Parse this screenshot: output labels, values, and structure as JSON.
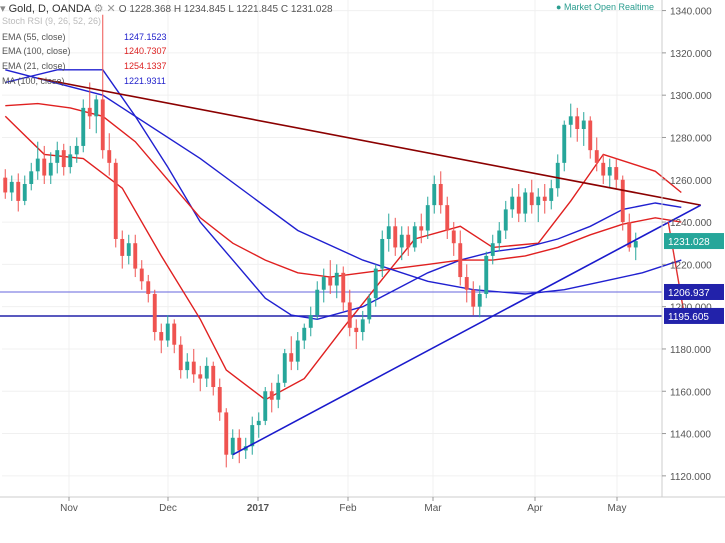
{
  "header": {
    "symbol": "Gold, D, OANDA",
    "open_label": "O",
    "open": "1228.368",
    "high_label": "H",
    "high": "1234.845",
    "low_label": "L",
    "low": "1221.845",
    "close_label": "C",
    "close": "1231.028",
    "market_status": "Market Open",
    "realtime": "Realtime"
  },
  "legend": [
    {
      "label": "Stoch RSI (9, 26, 52, 26)",
      "value": "",
      "color": "#999999"
    },
    {
      "label": "EMA (55, close)",
      "value": "1247.1523",
      "color": "#2222cc"
    },
    {
      "label": "EMA (100, close)",
      "value": "1240.7307",
      "color": "#dd2222"
    },
    {
      "label": "EMA (21, close)",
      "value": "1254.1337",
      "color": "#dd2222"
    },
    {
      "label": "MA (100, close)",
      "value": "1221.9311",
      "color": "#2222cc"
    }
  ],
  "chart_data": {
    "type": "candlestick",
    "x_tick_labels": [
      "Nov",
      "Dec",
      "2017",
      "Feb",
      "Mar",
      "Apr",
      "May"
    ],
    "y_ticks": [
      1120,
      1140,
      1160,
      1180,
      1200,
      1220,
      1240,
      1260,
      1280,
      1300,
      1320,
      1340
    ],
    "y_tick_labels": [
      "1120.000",
      "1140.000",
      "1160.000",
      "1180.000",
      "1200.000",
      "1220.000",
      "1240.000",
      "1260.000",
      "1280.000",
      "1300.000",
      "1320.000",
      "1340.000"
    ],
    "ylim": [
      1110,
      1345
    ],
    "price_tags": [
      {
        "label": "1231.028",
        "value": 1231.028,
        "color": "#26a69a"
      },
      {
        "label": "1206.937",
        "value": 1206.937,
        "color": "#2222aa"
      },
      {
        "label": "1195.605",
        "value": 1195.605,
        "color": "#2222aa"
      }
    ],
    "horizontal_levels": [
      {
        "value": 1206.937,
        "color": "#6666dd"
      },
      {
        "value": 1195.605,
        "color": "#2222aa"
      }
    ],
    "candles": [
      {
        "o": 1261,
        "h": 1265,
        "l": 1251,
        "c": 1254
      },
      {
        "o": 1254,
        "h": 1262,
        "l": 1250,
        "c": 1259
      },
      {
        "o": 1259,
        "h": 1263,
        "l": 1245,
        "c": 1250
      },
      {
        "o": 1250,
        "h": 1262,
        "l": 1248,
        "c": 1258
      },
      {
        "o": 1258,
        "h": 1268,
        "l": 1255,
        "c": 1264
      },
      {
        "o": 1264,
        "h": 1278,
        "l": 1260,
        "c": 1270
      },
      {
        "o": 1270,
        "h": 1276,
        "l": 1258,
        "c": 1262
      },
      {
        "o": 1262,
        "h": 1273,
        "l": 1258,
        "c": 1268
      },
      {
        "o": 1268,
        "h": 1278,
        "l": 1263,
        "c": 1274
      },
      {
        "o": 1274,
        "h": 1277,
        "l": 1262,
        "c": 1266
      },
      {
        "o": 1266,
        "h": 1276,
        "l": 1263,
        "c": 1272
      },
      {
        "o": 1272,
        "h": 1280,
        "l": 1268,
        "c": 1276
      },
      {
        "o": 1276,
        "h": 1298,
        "l": 1273,
        "c": 1294
      },
      {
        "o": 1294,
        "h": 1306,
        "l": 1284,
        "c": 1290
      },
      {
        "o": 1290,
        "h": 1300,
        "l": 1282,
        "c": 1298
      },
      {
        "o": 1298,
        "h": 1338,
        "l": 1270,
        "c": 1274
      },
      {
        "o": 1274,
        "h": 1282,
        "l": 1262,
        "c": 1268
      },
      {
        "o": 1268,
        "h": 1270,
        "l": 1228,
        "c": 1232
      },
      {
        "o": 1232,
        "h": 1236,
        "l": 1218,
        "c": 1224
      },
      {
        "o": 1224,
        "h": 1234,
        "l": 1220,
        "c": 1230
      },
      {
        "o": 1230,
        "h": 1234,
        "l": 1214,
        "c": 1218
      },
      {
        "o": 1218,
        "h": 1222,
        "l": 1208,
        "c": 1212
      },
      {
        "o": 1212,
        "h": 1215,
        "l": 1202,
        "c": 1206
      },
      {
        "o": 1206,
        "h": 1208,
        "l": 1184,
        "c": 1188
      },
      {
        "o": 1188,
        "h": 1192,
        "l": 1178,
        "c": 1184
      },
      {
        "o": 1184,
        "h": 1196,
        "l": 1181,
        "c": 1192
      },
      {
        "o": 1192,
        "h": 1194,
        "l": 1178,
        "c": 1182
      },
      {
        "o": 1182,
        "h": 1186,
        "l": 1166,
        "c": 1170
      },
      {
        "o": 1170,
        "h": 1178,
        "l": 1166,
        "c": 1174
      },
      {
        "o": 1174,
        "h": 1180,
        "l": 1164,
        "c": 1168
      },
      {
        "o": 1168,
        "h": 1172,
        "l": 1160,
        "c": 1166
      },
      {
        "o": 1166,
        "h": 1176,
        "l": 1162,
        "c": 1172
      },
      {
        "o": 1172,
        "h": 1174,
        "l": 1158,
        "c": 1162
      },
      {
        "o": 1162,
        "h": 1166,
        "l": 1146,
        "c": 1150
      },
      {
        "o": 1150,
        "h": 1152,
        "l": 1124,
        "c": 1130
      },
      {
        "o": 1130,
        "h": 1142,
        "l": 1128,
        "c": 1138
      },
      {
        "o": 1138,
        "h": 1142,
        "l": 1126,
        "c": 1132
      },
      {
        "o": 1132,
        "h": 1138,
        "l": 1128,
        "c": 1134
      },
      {
        "o": 1134,
        "h": 1148,
        "l": 1130,
        "c": 1144
      },
      {
        "o": 1144,
        "h": 1150,
        "l": 1138,
        "c": 1146
      },
      {
        "o": 1146,
        "h": 1162,
        "l": 1144,
        "c": 1160
      },
      {
        "o": 1160,
        "h": 1164,
        "l": 1150,
        "c": 1156
      },
      {
        "o": 1156,
        "h": 1168,
        "l": 1152,
        "c": 1164
      },
      {
        "o": 1164,
        "h": 1180,
        "l": 1162,
        "c": 1178
      },
      {
        "o": 1178,
        "h": 1186,
        "l": 1170,
        "c": 1174
      },
      {
        "o": 1174,
        "h": 1188,
        "l": 1170,
        "c": 1184
      },
      {
        "o": 1184,
        "h": 1192,
        "l": 1180,
        "c": 1190
      },
      {
        "o": 1190,
        "h": 1200,
        "l": 1186,
        "c": 1196
      },
      {
        "o": 1196,
        "h": 1212,
        "l": 1194,
        "c": 1208
      },
      {
        "o": 1208,
        "h": 1218,
        "l": 1202,
        "c": 1214
      },
      {
        "o": 1214,
        "h": 1222,
        "l": 1206,
        "c": 1210
      },
      {
        "o": 1210,
        "h": 1220,
        "l": 1204,
        "c": 1216
      },
      {
        "o": 1216,
        "h": 1219,
        "l": 1198,
        "c": 1202
      },
      {
        "o": 1202,
        "h": 1208,
        "l": 1186,
        "c": 1190
      },
      {
        "o": 1190,
        "h": 1194,
        "l": 1180,
        "c": 1188
      },
      {
        "o": 1188,
        "h": 1198,
        "l": 1184,
        "c": 1194
      },
      {
        "o": 1194,
        "h": 1206,
        "l": 1192,
        "c": 1204
      },
      {
        "o": 1204,
        "h": 1220,
        "l": 1200,
        "c": 1218
      },
      {
        "o": 1218,
        "h": 1236,
        "l": 1214,
        "c": 1232
      },
      {
        "o": 1232,
        "h": 1244,
        "l": 1226,
        "c": 1238
      },
      {
        "o": 1238,
        "h": 1242,
        "l": 1224,
        "c": 1228
      },
      {
        "o": 1228,
        "h": 1238,
        "l": 1222,
        "c": 1234
      },
      {
        "o": 1234,
        "h": 1238,
        "l": 1224,
        "c": 1228
      },
      {
        "o": 1228,
        "h": 1240,
        "l": 1226,
        "c": 1238
      },
      {
        "o": 1238,
        "h": 1244,
        "l": 1230,
        "c": 1236
      },
      {
        "o": 1236,
        "h": 1252,
        "l": 1232,
        "c": 1248
      },
      {
        "o": 1248,
        "h": 1262,
        "l": 1244,
        "c": 1258
      },
      {
        "o": 1258,
        "h": 1264,
        "l": 1244,
        "c": 1248
      },
      {
        "o": 1248,
        "h": 1252,
        "l": 1232,
        "c": 1236
      },
      {
        "o": 1236,
        "h": 1240,
        "l": 1224,
        "c": 1230
      },
      {
        "o": 1230,
        "h": 1236,
        "l": 1210,
        "c": 1214
      },
      {
        "o": 1214,
        "h": 1220,
        "l": 1202,
        "c": 1208
      },
      {
        "o": 1208,
        "h": 1212,
        "l": 1196,
        "c": 1200
      },
      {
        "o": 1200,
        "h": 1210,
        "l": 1195,
        "c": 1206
      },
      {
        "o": 1206,
        "h": 1226,
        "l": 1204,
        "c": 1224
      },
      {
        "o": 1224,
        "h": 1234,
        "l": 1220,
        "c": 1230
      },
      {
        "o": 1230,
        "h": 1240,
        "l": 1226,
        "c": 1236
      },
      {
        "o": 1236,
        "h": 1250,
        "l": 1232,
        "c": 1246
      },
      {
        "o": 1246,
        "h": 1256,
        "l": 1242,
        "c": 1252
      },
      {
        "o": 1252,
        "h": 1258,
        "l": 1240,
        "c": 1244
      },
      {
        "o": 1244,
        "h": 1256,
        "l": 1240,
        "c": 1254
      },
      {
        "o": 1254,
        "h": 1260,
        "l": 1244,
        "c": 1248
      },
      {
        "o": 1248,
        "h": 1256,
        "l": 1240,
        "c": 1252
      },
      {
        "o": 1252,
        "h": 1258,
        "l": 1244,
        "c": 1250
      },
      {
        "o": 1250,
        "h": 1260,
        "l": 1246,
        "c": 1256
      },
      {
        "o": 1256,
        "h": 1272,
        "l": 1252,
        "c": 1268
      },
      {
        "o": 1268,
        "h": 1288,
        "l": 1264,
        "c": 1286
      },
      {
        "o": 1286,
        "h": 1296,
        "l": 1280,
        "c": 1290
      },
      {
        "o": 1290,
        "h": 1294,
        "l": 1278,
        "c": 1284
      },
      {
        "o": 1284,
        "h": 1292,
        "l": 1276,
        "c": 1288
      },
      {
        "o": 1288,
        "h": 1290,
        "l": 1270,
        "c": 1274
      },
      {
        "o": 1274,
        "h": 1280,
        "l": 1264,
        "c": 1268
      },
      {
        "o": 1268,
        "h": 1272,
        "l": 1258,
        "c": 1262
      },
      {
        "o": 1262,
        "h": 1270,
        "l": 1256,
        "c": 1266
      },
      {
        "o": 1266,
        "h": 1270,
        "l": 1256,
        "c": 1260
      },
      {
        "o": 1260,
        "h": 1262,
        "l": 1236,
        "c": 1240
      },
      {
        "o": 1240,
        "h": 1244,
        "l": 1226,
        "c": 1228
      },
      {
        "o": 1228,
        "h": 1235,
        "l": 1222,
        "c": 1231
      }
    ],
    "series": [
      {
        "name": "EMA (21, close)",
        "color": "#e02020",
        "x": [
          0,
          6,
          12,
          18,
          24,
          30,
          34,
          40,
          46,
          52,
          58,
          63,
          70,
          75,
          82,
          87,
          92,
          96,
          100,
          104
        ],
        "values": [
          1290,
          1272,
          1270,
          1256,
          1224,
          1194,
          1170,
          1156,
          1166,
          1190,
          1213,
          1232,
          1238,
          1228,
          1230,
          1250,
          1272,
          1268,
          1264,
          1254
        ]
      },
      {
        "name": "EMA (55, close)",
        "color": "#2020d0",
        "x": [
          0,
          8,
          15,
          20,
          25,
          30,
          35,
          40,
          44,
          48,
          55,
          60,
          65,
          70,
          75,
          80,
          85,
          90,
          95,
          100,
          104
        ],
        "values": [
          1306,
          1312,
          1312,
          1290,
          1266,
          1240,
          1222,
          1204,
          1196,
          1194,
          1200,
          1208,
          1216,
          1222,
          1226,
          1228,
          1232,
          1238,
          1246,
          1249,
          1247
        ]
      },
      {
        "name": "EMA (100, close)",
        "color": "#e02020",
        "x": [
          0,
          5,
          10,
          15,
          20,
          25,
          30,
          35,
          40,
          45,
          50,
          55,
          60,
          65,
          70,
          75,
          80,
          85,
          90,
          95,
          100,
          104
        ],
        "values": [
          1295,
          1296,
          1294,
          1290,
          1278,
          1260,
          1242,
          1230,
          1222,
          1216,
          1214,
          1216,
          1218,
          1220,
          1222,
          1222,
          1224,
          1228,
          1234,
          1239,
          1242,
          1240
        ]
      },
      {
        "name": "MA (100, close)",
        "color": "#2020d0",
        "x": [
          0,
          15,
          30,
          45,
          55,
          65,
          72,
          80,
          86,
          92,
          98,
          104
        ],
        "values": [
          1312,
          1300,
          1270,
          1236,
          1222,
          1212,
          1208,
          1206,
          1208,
          1212,
          1216,
          1222
        ]
      }
    ],
    "trendlines": [
      {
        "name": "downtrend",
        "color": "#8b0000",
        "from": {
          "x": 5,
          "y": 1308
        },
        "to": {
          "x": 107,
          "y": 1248
        }
      },
      {
        "name": "uptrend",
        "color": "#1a1acc",
        "from": {
          "x": 35,
          "y": 1130
        },
        "to": {
          "x": 107,
          "y": 1248
        }
      }
    ],
    "projection": {
      "color": "#e03030",
      "from": {
        "x": 102,
        "y": 1240
      },
      "to": {
        "x": 104.5,
        "y": 1195.6
      }
    }
  }
}
